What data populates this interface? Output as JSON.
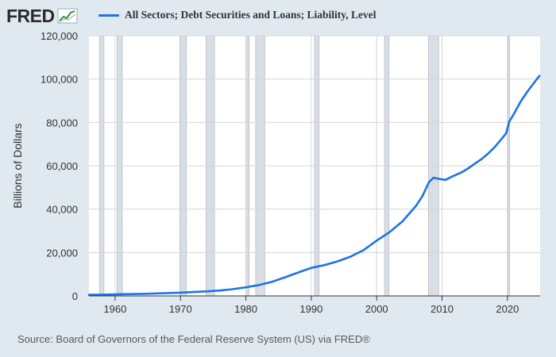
{
  "brand": {
    "logo_text": "FRED",
    "logo_icon": "trend-chart-icon"
  },
  "chart_data": {
    "type": "line",
    "title": "",
    "xlabel": "",
    "ylabel": "Billions of Dollars",
    "xlim": [
      1956,
      2025
    ],
    "ylim": [
      0,
      120000
    ],
    "grid": true,
    "legend_position": "top-left",
    "x_ticks": [
      {
        "value": 1960,
        "label": "1960"
      },
      {
        "value": 1970,
        "label": "1970"
      },
      {
        "value": 1980,
        "label": "1980"
      },
      {
        "value": 1990,
        "label": "1990"
      },
      {
        "value": 2000,
        "label": "2000"
      },
      {
        "value": 2010,
        "label": "2010"
      },
      {
        "value": 2020,
        "label": "2020"
      }
    ],
    "y_ticks": [
      {
        "value": 0,
        "label": "0"
      },
      {
        "value": 20000,
        "label": "20,000"
      },
      {
        "value": 40000,
        "label": "40,000"
      },
      {
        "value": 60000,
        "label": "60,000"
      },
      {
        "value": 80000,
        "label": "80,000"
      },
      {
        "value": 100000,
        "label": "100,000"
      },
      {
        "value": 120000,
        "label": "120,000"
      }
    ],
    "recessions": [
      [
        1957.6,
        1958.3
      ],
      [
        1960.3,
        1961.1
      ],
      [
        1969.9,
        1970.9
      ],
      [
        1973.9,
        1975.2
      ],
      [
        1980.0,
        1980.5
      ],
      [
        1981.5,
        1982.9
      ],
      [
        1990.5,
        1991.2
      ],
      [
        2001.2,
        2001.9
      ],
      [
        2007.9,
        2009.5
      ],
      [
        2020.1,
        2020.3
      ]
    ],
    "series": [
      {
        "name": "All Sectors; Debt Securities and Loans; Liability, Level",
        "color": "#1a73e8",
        "points": [
          [
            1956,
            500
          ],
          [
            1958,
            600
          ],
          [
            1960,
            700
          ],
          [
            1962,
            850
          ],
          [
            1964,
            950
          ],
          [
            1966,
            1100
          ],
          [
            1968,
            1300
          ],
          [
            1970,
            1500
          ],
          [
            1972,
            1800
          ],
          [
            1974,
            2100
          ],
          [
            1976,
            2500
          ],
          [
            1978,
            3100
          ],
          [
            1980,
            4000
          ],
          [
            1982,
            5000
          ],
          [
            1984,
            6500
          ],
          [
            1986,
            8600
          ],
          [
            1988,
            10800
          ],
          [
            1990,
            12900
          ],
          [
            1992,
            14200
          ],
          [
            1994,
            15900
          ],
          [
            1996,
            18100
          ],
          [
            1998,
            21100
          ],
          [
            2000,
            25500
          ],
          [
            2002,
            29500
          ],
          [
            2004,
            34500
          ],
          [
            2006,
            41500
          ],
          [
            2007,
            46000
          ],
          [
            2008,
            52500
          ],
          [
            2008.7,
            54500
          ],
          [
            2009.5,
            54000
          ],
          [
            2010.5,
            53500
          ],
          [
            2011.5,
            55000
          ],
          [
            2013,
            57000
          ],
          [
            2014,
            58800
          ],
          [
            2015,
            61000
          ],
          [
            2016,
            63000
          ],
          [
            2017,
            65500
          ],
          [
            2018,
            68500
          ],
          [
            2019,
            72000
          ],
          [
            2019.8,
            75000
          ],
          [
            2020.3,
            80500
          ],
          [
            2021,
            84000
          ],
          [
            2022,
            89500
          ],
          [
            2023,
            94000
          ],
          [
            2024,
            98000
          ],
          [
            2024.9,
            101500
          ]
        ]
      }
    ]
  },
  "source_note": "Source: Board of Governors of the Federal Reserve System (US) via FRED®"
}
